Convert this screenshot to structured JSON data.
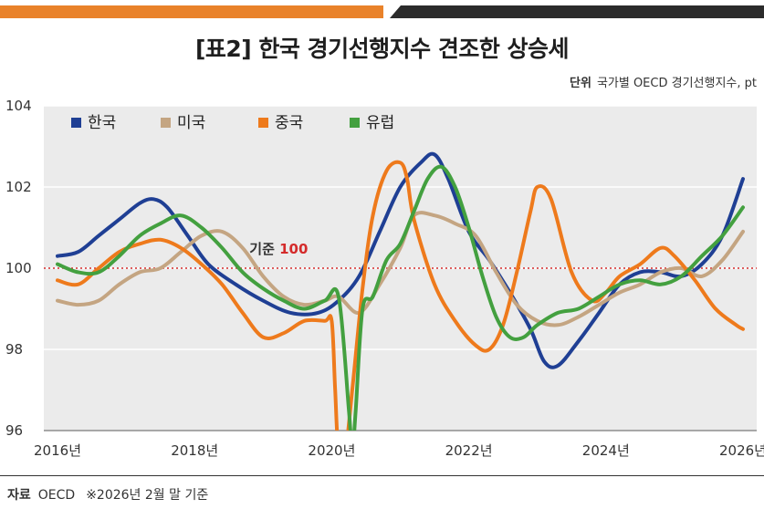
{
  "header": {
    "title": "[표2] 한국 경기선행지수 견조한 상승세",
    "unit_label": "단위",
    "unit_text": "국가별 OECD 경기선행지수, pt"
  },
  "footer": {
    "source_label": "자료",
    "source_text": "OECD",
    "note": "※2026년 2월 말 기준"
  },
  "colors": {
    "korea": "#1f3f94",
    "usa": "#c4a582",
    "china": "#ee7a1c",
    "europe": "#43a03f",
    "reference": "#d42b2b",
    "plot_bg": "#ebebeb",
    "top_bar_orange": "#e9822a",
    "top_bar_dark": "#2b2b2b"
  },
  "chart_data": {
    "type": "line",
    "title": "[표2] 한국 경기선행지수 견조한 상승세",
    "xlabel": "",
    "ylabel": "",
    "ylim": [
      96,
      104
    ],
    "xlim": [
      2015.8,
      2026.2
    ],
    "yticks": [
      96,
      98,
      100,
      102,
      104
    ],
    "xticks": [
      {
        "value": 2016,
        "label": "2016년"
      },
      {
        "value": 2018,
        "label": "2018년"
      },
      {
        "value": 2020,
        "label": "2020년"
      },
      {
        "value": 2022,
        "label": "2022년"
      },
      {
        "value": 2024,
        "label": "2024년"
      },
      {
        "value": 2026,
        "label": "2026년"
      }
    ],
    "grid": true,
    "legend_position": "top-left",
    "reference_line": {
      "value": 100,
      "label": "기준",
      "value_label": "100"
    },
    "series": [
      {
        "name": "한국",
        "color": "#1f3f94",
        "x": [
          2016.0,
          2016.3,
          2016.6,
          2016.9,
          2017.2,
          2017.4,
          2017.6,
          2017.9,
          2018.2,
          2018.6,
          2019.0,
          2019.4,
          2019.8,
          2020.1,
          2020.4,
          2020.7,
          2021.0,
          2021.3,
          2021.5,
          2021.7,
          2022.0,
          2022.3,
          2022.6,
          2022.9,
          2023.1,
          2023.3,
          2023.6,
          2023.9,
          2024.2,
          2024.5,
          2024.8,
          2025.1,
          2025.4,
          2025.7,
          2026.0
        ],
        "values": [
          100.3,
          100.4,
          100.8,
          101.2,
          101.6,
          101.7,
          101.5,
          100.8,
          100.1,
          99.6,
          99.2,
          98.9,
          98.9,
          99.2,
          99.8,
          100.9,
          102.0,
          102.6,
          102.8,
          102.2,
          100.9,
          100.2,
          99.4,
          98.5,
          97.7,
          97.6,
          98.2,
          98.9,
          99.6,
          99.9,
          99.9,
          99.8,
          100.1,
          100.8,
          102.2
        ]
      },
      {
        "name": "미국",
        "color": "#c4a582",
        "x": [
          2016.0,
          2016.3,
          2016.6,
          2016.9,
          2017.2,
          2017.5,
          2017.8,
          2018.1,
          2018.4,
          2018.7,
          2019.0,
          2019.3,
          2019.6,
          2019.9,
          2020.1,
          2020.4,
          2020.7,
          2021.0,
          2021.2,
          2021.5,
          2021.8,
          2022.1,
          2022.4,
          2022.7,
          2023.0,
          2023.3,
          2023.6,
          2023.9,
          2024.2,
          2024.5,
          2024.8,
          2025.1,
          2025.4,
          2025.7,
          2026.0
        ],
        "values": [
          99.2,
          99.1,
          99.2,
          99.6,
          99.9,
          100.0,
          100.4,
          100.8,
          100.9,
          100.5,
          99.8,
          99.3,
          99.1,
          99.2,
          99.3,
          98.9,
          99.6,
          100.5,
          101.3,
          101.3,
          101.1,
          100.8,
          99.9,
          99.1,
          98.7,
          98.6,
          98.8,
          99.1,
          99.4,
          99.6,
          99.9,
          100.0,
          99.8,
          100.2,
          100.9
        ]
      },
      {
        "name": "중국",
        "color": "#ee7a1c",
        "x": [
          2016.0,
          2016.3,
          2016.6,
          2016.9,
          2017.2,
          2017.5,
          2017.8,
          2018.1,
          2018.4,
          2018.7,
          2019.0,
          2019.3,
          2019.6,
          2019.9,
          2020.0,
          2020.05,
          2020.1,
          2020.2,
          2020.3,
          2020.45,
          2020.6,
          2020.8,
          2021.0,
          2021.1,
          2021.2,
          2021.5,
          2021.8,
          2022.1,
          2022.3,
          2022.5,
          2022.7,
          2022.9,
          2023.0,
          2023.2,
          2023.5,
          2023.8,
          2024.0,
          2024.2,
          2024.5,
          2024.8,
          2025.0,
          2025.3,
          2025.6,
          2025.9,
          2026.0
        ],
        "values": [
          99.7,
          99.6,
          100.0,
          100.4,
          100.6,
          100.7,
          100.5,
          100.1,
          99.6,
          98.9,
          98.3,
          98.4,
          98.7,
          98.7,
          98.7,
          97.0,
          95.5,
          95.5,
          97.0,
          99.5,
          101.3,
          102.4,
          102.6,
          102.2,
          101.2,
          99.6,
          98.7,
          98.1,
          98.0,
          98.6,
          99.9,
          101.4,
          102.0,
          101.7,
          99.9,
          99.2,
          99.4,
          99.8,
          100.1,
          100.5,
          100.3,
          99.7,
          99.0,
          98.6,
          98.5
        ]
      },
      {
        "name": "유럽",
        "color": "#43a03f",
        "x": [
          2016.0,
          2016.3,
          2016.6,
          2016.9,
          2017.2,
          2017.5,
          2017.8,
          2018.1,
          2018.4,
          2018.7,
          2019.0,
          2019.3,
          2019.6,
          2019.9,
          2020.1,
          2020.25,
          2020.3,
          2020.35,
          2020.45,
          2020.6,
          2020.8,
          2021.0,
          2021.2,
          2021.4,
          2021.6,
          2021.8,
          2022.0,
          2022.2,
          2022.4,
          2022.6,
          2022.8,
          2023.0,
          2023.3,
          2023.6,
          2023.9,
          2024.2,
          2024.5,
          2024.8,
          2025.1,
          2025.4,
          2025.7,
          2026.0
        ],
        "values": [
          100.1,
          99.9,
          99.9,
          100.3,
          100.8,
          101.1,
          101.3,
          101.0,
          100.5,
          99.9,
          99.5,
          99.2,
          99.0,
          99.2,
          99.3,
          96.5,
          95.5,
          96.5,
          99.0,
          99.3,
          100.2,
          100.6,
          101.4,
          102.2,
          102.5,
          102.0,
          101.0,
          99.8,
          98.8,
          98.3,
          98.3,
          98.6,
          98.9,
          99.0,
          99.3,
          99.6,
          99.7,
          99.6,
          99.8,
          100.3,
          100.8,
          101.5
        ]
      }
    ]
  }
}
